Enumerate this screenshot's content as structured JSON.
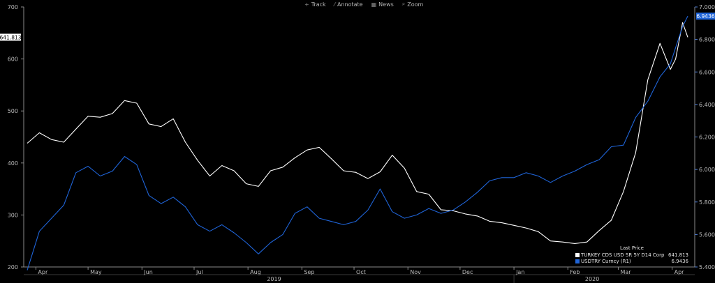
{
  "toolbar": {
    "track": {
      "label": "Track",
      "icon": "crosshair-icon"
    },
    "annotate": {
      "label": "Annotate",
      "icon": "pencil-icon"
    },
    "news": {
      "label": "News",
      "icon": "news-icon"
    },
    "zoom": {
      "label": "Zoom",
      "icon": "magnifier-icon"
    }
  },
  "legend": {
    "title": "Last Price",
    "items": [
      {
        "name": "TURKEY CDS USD SR 5Y D14 Corp  (L1)",
        "value": "641.813",
        "color": "#ffffff"
      },
      {
        "name": "USDTRY Curncy  (R1)",
        "value": "6.9436",
        "color": "#1f64d8"
      }
    ]
  },
  "chart_data": {
    "type": "line",
    "grid": false,
    "legend_position": "bottom-right",
    "x_range": [
      "2019-03-25",
      "2020-04-14"
    ],
    "x_month_labels": [
      {
        "label": "Apr",
        "date": "2019-04-01"
      },
      {
        "label": "May",
        "date": "2019-05-01"
      },
      {
        "label": "Jun",
        "date": "2019-06-01"
      },
      {
        "label": "Jul",
        "date": "2019-07-01"
      },
      {
        "label": "Aug",
        "date": "2019-08-01"
      },
      {
        "label": "Sep",
        "date": "2019-09-01"
      },
      {
        "label": "Oct",
        "date": "2019-10-01"
      },
      {
        "label": "Nov",
        "date": "2019-11-01"
      },
      {
        "label": "Dec",
        "date": "2019-12-01"
      },
      {
        "label": "Jan",
        "date": "2020-01-01"
      },
      {
        "label": "Feb",
        "date": "2020-02-01"
      },
      {
        "label": "Mar",
        "date": "2020-03-01"
      },
      {
        "label": "Apr",
        "date": "2020-04-01"
      }
    ],
    "x_year_labels": [
      {
        "label": "2019",
        "date": "2019-08-16"
      },
      {
        "label": "2020",
        "date": "2020-02-15"
      }
    ],
    "y_left": {
      "min": 200,
      "max": 700,
      "ticks": [
        200,
        300,
        400,
        500,
        600,
        700
      ]
    },
    "y_right": {
      "min": 5.4,
      "max": 7.0,
      "ticks": [
        "5.4000",
        "5.6000",
        "5.8000",
        "6.0000",
        "6.2000",
        "6.4000",
        "6.6000",
        "6.8000",
        "7.0000"
      ]
    },
    "last_value_flags": {
      "left": "641.813",
      "right": "6.9436"
    },
    "series": [
      {
        "name": "TURKEY CDS USD SR 5Y D14 Corp",
        "axis": "left",
        "color": "#ffffff",
        "points": [
          [
            "2019-03-27",
            438
          ],
          [
            "2019-04-03",
            458
          ],
          [
            "2019-04-10",
            445
          ],
          [
            "2019-04-17",
            440
          ],
          [
            "2019-04-24",
            465
          ],
          [
            "2019-05-01",
            490
          ],
          [
            "2019-05-08",
            488
          ],
          [
            "2019-05-15",
            495
          ],
          [
            "2019-05-22",
            520
          ],
          [
            "2019-05-29",
            515
          ],
          [
            "2019-06-05",
            475
          ],
          [
            "2019-06-12",
            470
          ],
          [
            "2019-06-19",
            485
          ],
          [
            "2019-06-26",
            440
          ],
          [
            "2019-07-03",
            405
          ],
          [
            "2019-07-10",
            375
          ],
          [
            "2019-07-17",
            395
          ],
          [
            "2019-07-24",
            385
          ],
          [
            "2019-07-31",
            360
          ],
          [
            "2019-08-07",
            355
          ],
          [
            "2019-08-14",
            385
          ],
          [
            "2019-08-21",
            392
          ],
          [
            "2019-08-28",
            410
          ],
          [
            "2019-09-04",
            425
          ],
          [
            "2019-09-11",
            430
          ],
          [
            "2019-09-18",
            408
          ],
          [
            "2019-09-25",
            385
          ],
          [
            "2019-10-02",
            382
          ],
          [
            "2019-10-09",
            370
          ],
          [
            "2019-10-16",
            383
          ],
          [
            "2019-10-23",
            415
          ],
          [
            "2019-10-30",
            390
          ],
          [
            "2019-11-06",
            345
          ],
          [
            "2019-11-13",
            340
          ],
          [
            "2019-11-20",
            310
          ],
          [
            "2019-11-27",
            308
          ],
          [
            "2019-12-04",
            302
          ],
          [
            "2019-12-11",
            298
          ],
          [
            "2019-12-18",
            288
          ],
          [
            "2019-12-25",
            285
          ],
          [
            "2020-01-01",
            280
          ],
          [
            "2020-01-08",
            275
          ],
          [
            "2020-01-15",
            268
          ],
          [
            "2020-01-22",
            250
          ],
          [
            "2020-01-29",
            248
          ],
          [
            "2020-02-05",
            245
          ],
          [
            "2020-02-12",
            248
          ],
          [
            "2020-02-19",
            270
          ],
          [
            "2020-02-26",
            290
          ],
          [
            "2020-03-04",
            345
          ],
          [
            "2020-03-11",
            420
          ],
          [
            "2020-03-18",
            560
          ],
          [
            "2020-03-25",
            630
          ],
          [
            "2020-03-31",
            580
          ],
          [
            "2020-04-03",
            600
          ],
          [
            "2020-04-07",
            670
          ],
          [
            "2020-04-10",
            641.813
          ]
        ]
      },
      {
        "name": "USDTRY Curncy",
        "axis": "right",
        "color": "#1f64d8",
        "points": [
          [
            "2019-03-27",
            5.38
          ],
          [
            "2019-04-03",
            5.62
          ],
          [
            "2019-04-10",
            5.7
          ],
          [
            "2019-04-17",
            5.78
          ],
          [
            "2019-04-24",
            5.98
          ],
          [
            "2019-05-01",
            6.02
          ],
          [
            "2019-05-08",
            5.96
          ],
          [
            "2019-05-15",
            5.99
          ],
          [
            "2019-05-22",
            6.08
          ],
          [
            "2019-05-29",
            6.03
          ],
          [
            "2019-06-05",
            5.84
          ],
          [
            "2019-06-12",
            5.79
          ],
          [
            "2019-06-19",
            5.83
          ],
          [
            "2019-06-26",
            5.77
          ],
          [
            "2019-07-03",
            5.66
          ],
          [
            "2019-07-10",
            5.62
          ],
          [
            "2019-07-17",
            5.66
          ],
          [
            "2019-07-24",
            5.61
          ],
          [
            "2019-07-31",
            5.55
          ],
          [
            "2019-08-07",
            5.48
          ],
          [
            "2019-08-14",
            5.55
          ],
          [
            "2019-08-21",
            5.6
          ],
          [
            "2019-08-28",
            5.73
          ],
          [
            "2019-09-04",
            5.77
          ],
          [
            "2019-09-11",
            5.7
          ],
          [
            "2019-09-18",
            5.68
          ],
          [
            "2019-09-25",
            5.66
          ],
          [
            "2019-10-02",
            5.68
          ],
          [
            "2019-10-09",
            5.75
          ],
          [
            "2019-10-16",
            5.88
          ],
          [
            "2019-10-23",
            5.74
          ],
          [
            "2019-10-30",
            5.7
          ],
          [
            "2019-11-06",
            5.72
          ],
          [
            "2019-11-13",
            5.76
          ],
          [
            "2019-11-20",
            5.73
          ],
          [
            "2019-11-27",
            5.75
          ],
          [
            "2019-12-04",
            5.8
          ],
          [
            "2019-12-11",
            5.86
          ],
          [
            "2019-12-18",
            5.93
          ],
          [
            "2019-12-25",
            5.95
          ],
          [
            "2020-01-01",
            5.95
          ],
          [
            "2020-01-08",
            5.98
          ],
          [
            "2020-01-15",
            5.96
          ],
          [
            "2020-01-22",
            5.92
          ],
          [
            "2020-01-29",
            5.96
          ],
          [
            "2020-02-05",
            5.99
          ],
          [
            "2020-02-12",
            6.03
          ],
          [
            "2020-02-19",
            6.06
          ],
          [
            "2020-02-26",
            6.14
          ],
          [
            "2020-03-04",
            6.15
          ],
          [
            "2020-03-11",
            6.32
          ],
          [
            "2020-03-18",
            6.42
          ],
          [
            "2020-03-25",
            6.57
          ],
          [
            "2020-03-31",
            6.65
          ],
          [
            "2020-04-03",
            6.75
          ],
          [
            "2020-04-07",
            6.88
          ],
          [
            "2020-04-10",
            6.9436
          ]
        ]
      }
    ]
  }
}
